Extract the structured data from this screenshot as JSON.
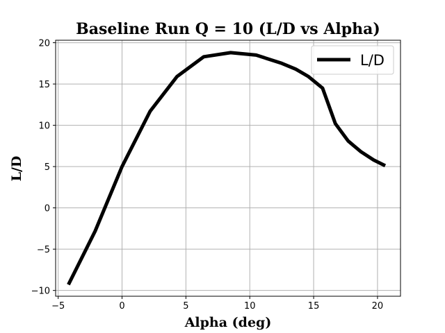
{
  "chart_data": {
    "type": "line",
    "title": "Baseline Run Q = 10 (L/D vs Alpha)",
    "xlabel": "Alpha (deg)",
    "ylabel": "L/D",
    "xlim": [
      -5.2,
      21.8
    ],
    "ylim": [
      -10.7,
      20.3
    ],
    "xticks": [
      -5,
      0,
      5,
      10,
      15,
      20
    ],
    "yticks": [
      -10,
      -5,
      0,
      5,
      10,
      15,
      20
    ],
    "grid": true,
    "legend_position": "top-right",
    "series": [
      {
        "name": "L/D",
        "color": "#000000",
        "x": [
          -4.2,
          -2.1,
          0.0,
          2.2,
          4.3,
          6.4,
          8.5,
          10.5,
          12.5,
          13.6,
          14.6,
          15.7,
          16.7,
          17.7,
          18.7,
          19.7,
          20.6
        ],
        "y": [
          -9.3,
          -2.8,
          5.0,
          11.7,
          15.9,
          18.3,
          18.8,
          18.5,
          17.5,
          16.8,
          15.9,
          14.5,
          10.2,
          8.1,
          6.8,
          5.8,
          5.1
        ]
      }
    ]
  }
}
